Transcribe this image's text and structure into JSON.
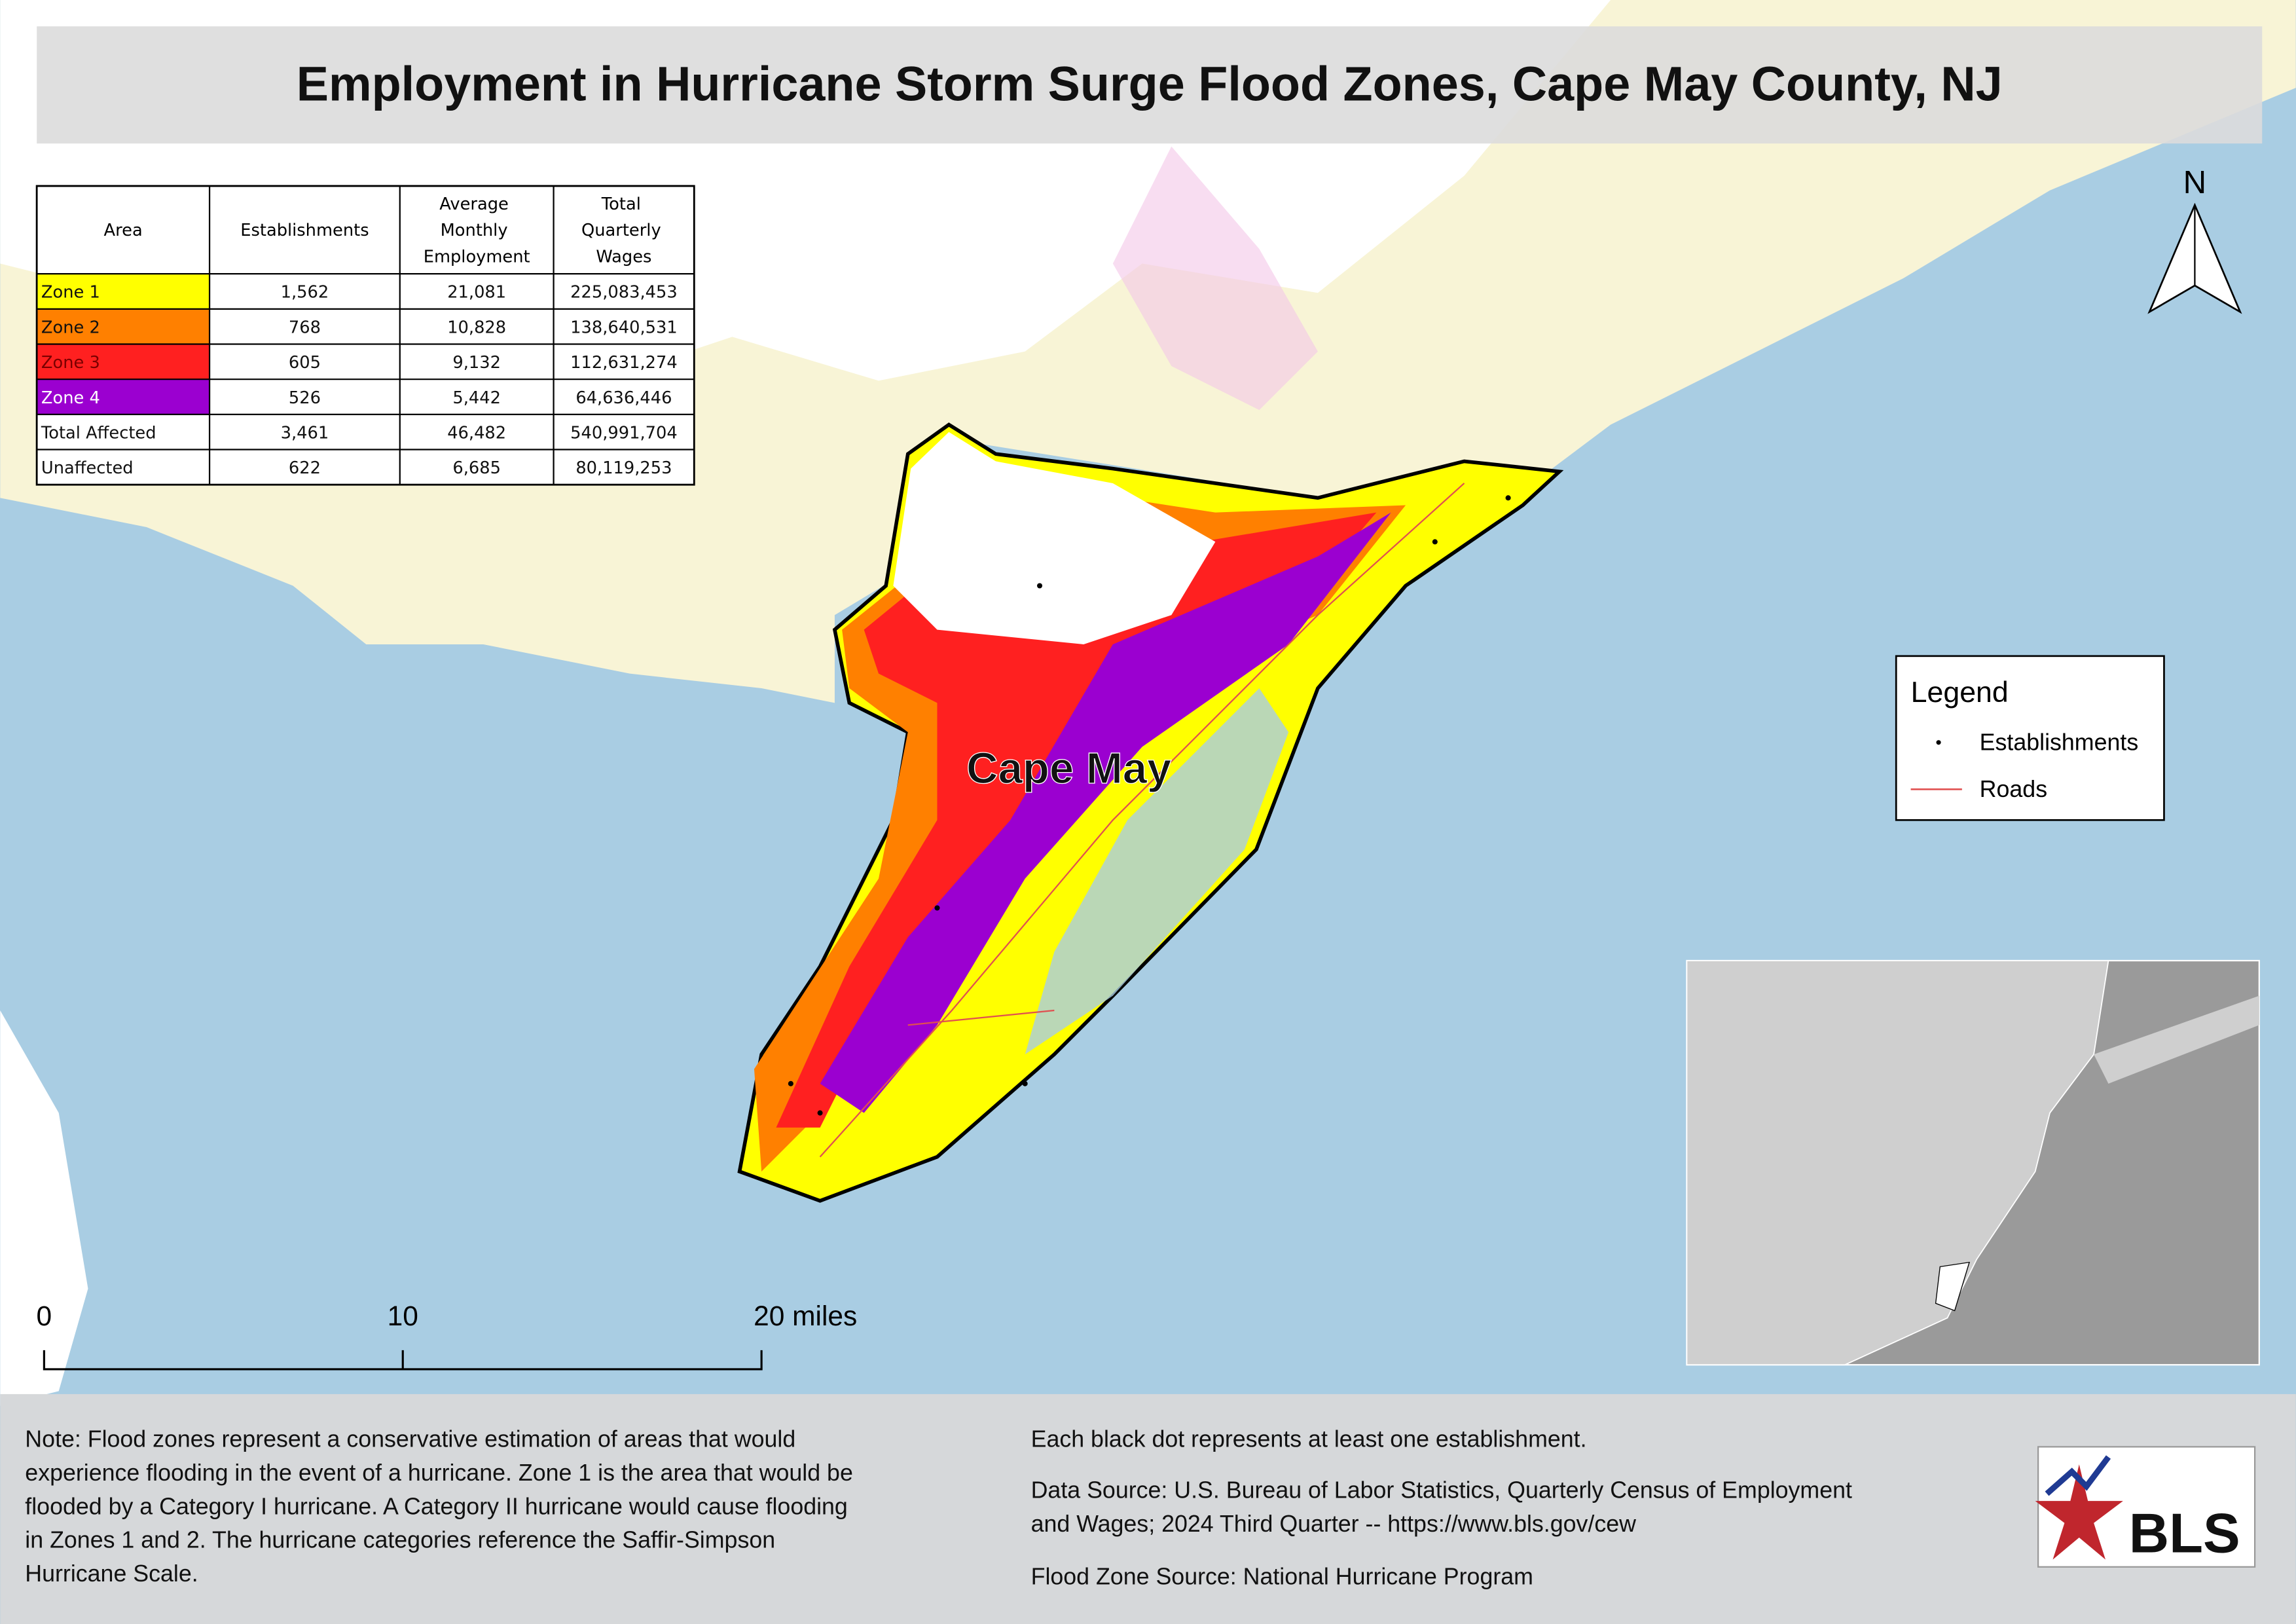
{
  "title": "Employment in Hurricane Storm Surge Flood Zones, Cape May County, NJ",
  "table": {
    "header": [
      "Area",
      "Establishments",
      "Average Monthly Employment",
      "Total Quarterly Wages"
    ],
    "rows": [
      [
        "Zone 1",
        "1,562",
        "21,081",
        "225,083,453"
      ],
      [
        "Zone 2",
        "768",
        "10,828",
        "138,640,531"
      ],
      [
        "Zone 3",
        "605",
        "9,132",
        "112,631,274"
      ],
      [
        "Zone 4",
        "526",
        "5,442",
        "64,636,446"
      ],
      [
        "Total Affected",
        "3,461",
        "46,482",
        "540,991,704"
      ],
      [
        "Unaffected",
        "622",
        "6,685",
        "80,119,253"
      ]
    ]
  },
  "map": {
    "label": "Cape May",
    "north": "N"
  },
  "legend": {
    "title": "Legend",
    "items": [
      "Establishments",
      "Roads"
    ]
  },
  "scale_bar": {
    "labels": [
      "0",
      "10",
      "20 miles"
    ]
  },
  "notes": {
    "left": [
      "Note: Flood zones represent a conservative estimation of areas that would",
      "experience flooding in the event of a hurricane. Zone 1 is the area that would be",
      "flooded by a Category I hurricane. A Category II hurricane would cause flooding",
      "in Zones 1 and 2. The hurricane categories reference the Saffir-Simpson",
      "Hurricane Scale."
    ],
    "right": [
      "Each black dot represents at least one establishment.",
      "Data Source: U.S. Bureau of Labor Statistics, Quarterly Census of Employment",
      "and Wages; 2024 Third Quarter -- https://www.bls.gov/cew",
      "Flood Zone Source: National Hurricane Program"
    ]
  },
  "logo": "BLS"
}
